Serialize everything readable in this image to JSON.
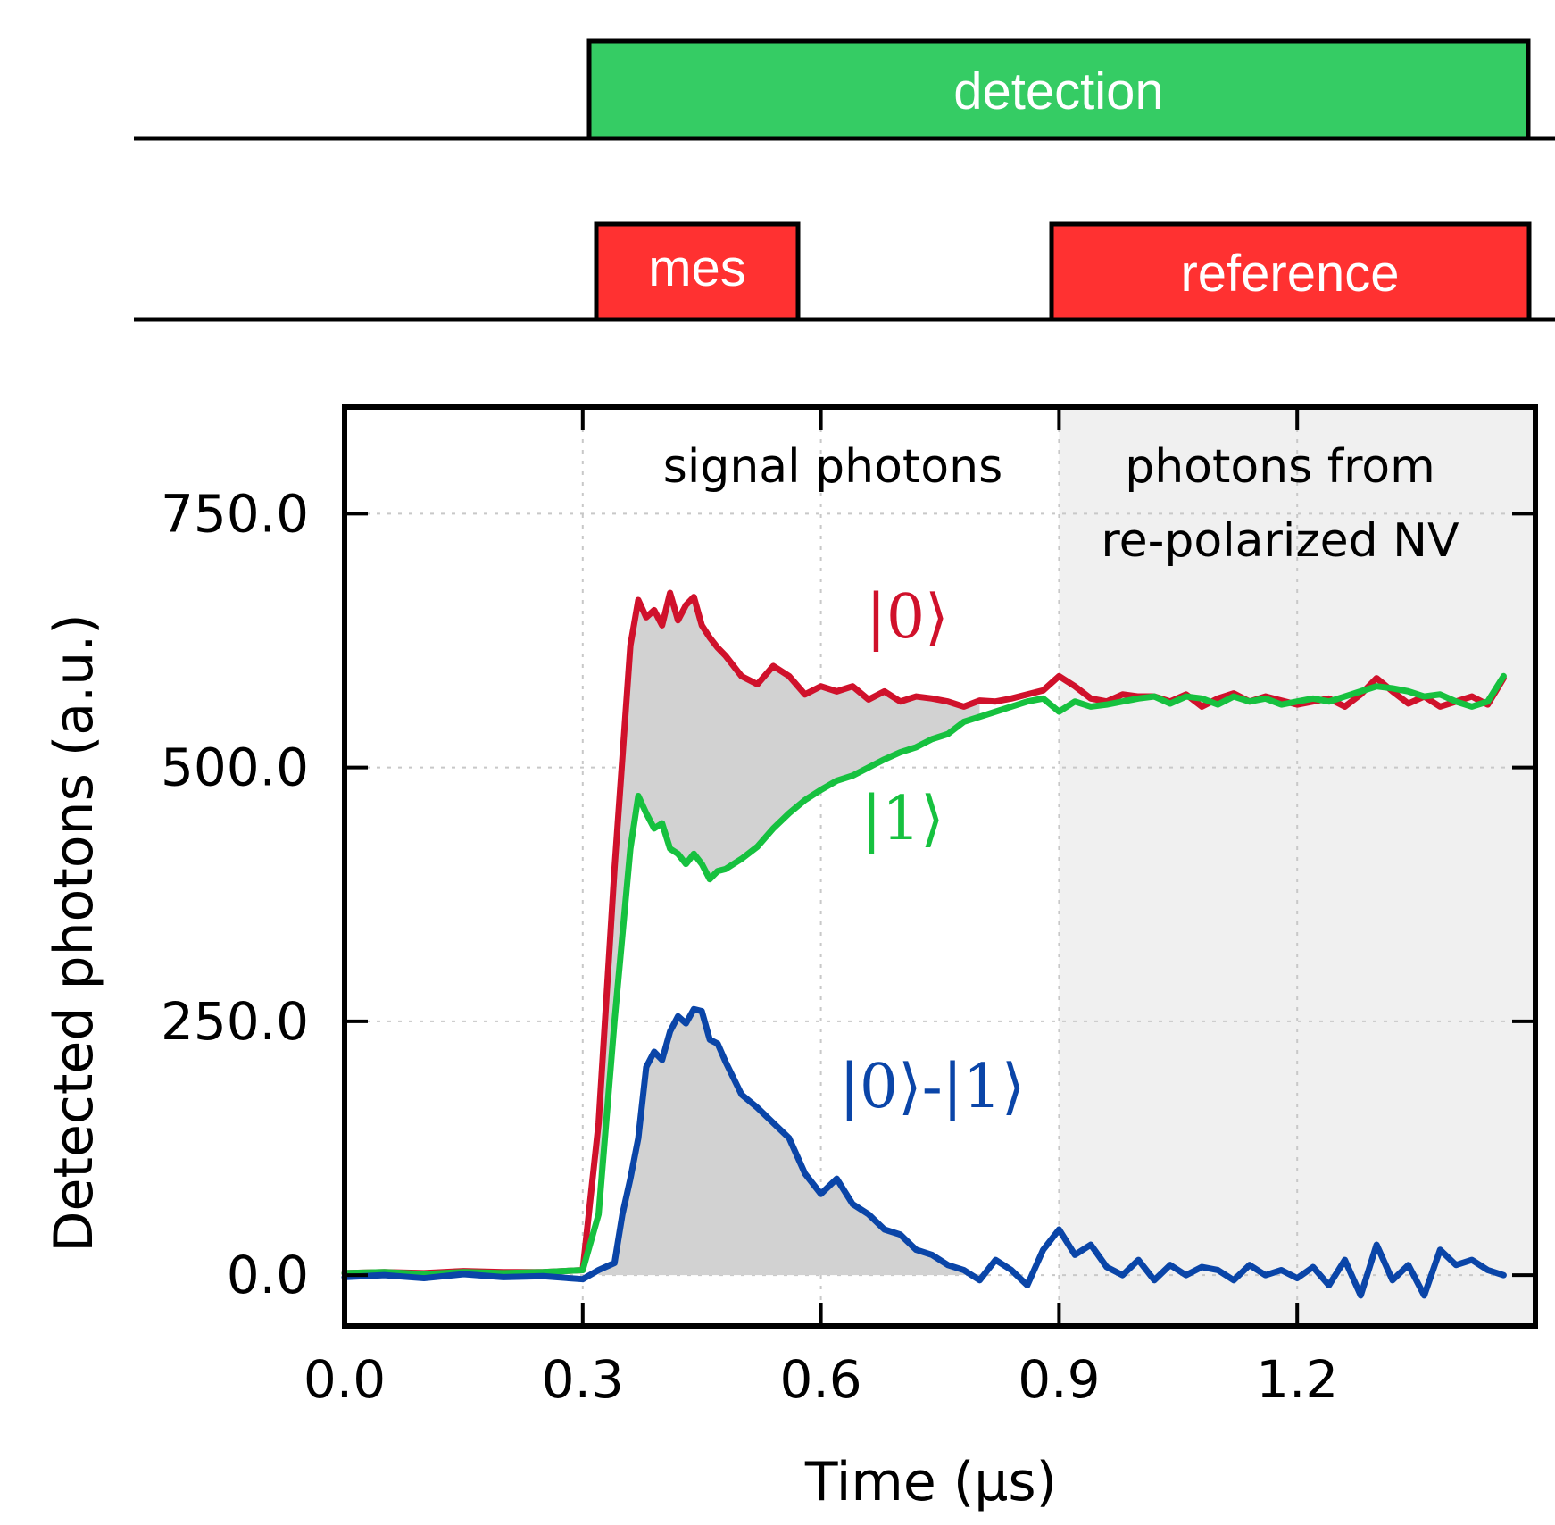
{
  "timing": {
    "detection": {
      "label": "detection",
      "start": 0.3,
      "end": 1.5,
      "color": "#35cc64"
    },
    "mes": {
      "label": "mes",
      "start": 0.31,
      "end": 0.58,
      "color": "#ff3131"
    },
    "reference": {
      "label": "reference",
      "start": 0.89,
      "end": 1.5,
      "color": "#ff3131"
    }
  },
  "regions": {
    "signal": "signal photons",
    "repolarized_line1": "photons from",
    "repolarized_line2": "re-polarized NV",
    "reference_shade_start": 0.9
  },
  "chart_data": {
    "type": "line",
    "xlabel": "Time (μs)",
    "ylabel": "Detected photons (a.u.)",
    "xlim": [
      0.0,
      1.5
    ],
    "ylim": [
      -50,
      855
    ],
    "xticks": [
      "0.0",
      "0.3",
      "0.6",
      "0.9",
      "1.2"
    ],
    "xtick_values": [
      0.0,
      0.3,
      0.6,
      0.9,
      1.2
    ],
    "yticks": [
      "0.0",
      "250.0",
      "500.0",
      "750.0"
    ],
    "ytick_values": [
      0,
      250,
      500,
      750
    ],
    "grid": true,
    "series": [
      {
        "name": "|0⟩",
        "color": "#d0112b",
        "x": [
          0.0,
          0.05,
          0.1,
          0.15,
          0.2,
          0.25,
          0.3,
          0.32,
          0.34,
          0.36,
          0.37,
          0.38,
          0.39,
          0.4,
          0.41,
          0.42,
          0.43,
          0.44,
          0.45,
          0.46,
          0.47,
          0.48,
          0.5,
          0.52,
          0.54,
          0.56,
          0.58,
          0.6,
          0.62,
          0.64,
          0.66,
          0.68,
          0.7,
          0.72,
          0.74,
          0.76,
          0.78,
          0.8,
          0.82,
          0.84,
          0.86,
          0.88,
          0.9,
          0.92,
          0.94,
          0.96,
          0.98,
          1.0,
          1.02,
          1.04,
          1.06,
          1.08,
          1.1,
          1.12,
          1.14,
          1.16,
          1.18,
          1.2,
          1.22,
          1.24,
          1.26,
          1.28,
          1.3,
          1.32,
          1.34,
          1.36,
          1.38,
          1.4,
          1.42,
          1.44,
          1.46
        ],
        "y": [
          2,
          3,
          2,
          4,
          3,
          3,
          5,
          150,
          400,
          620,
          665,
          648,
          655,
          640,
          672,
          645,
          660,
          668,
          640,
          628,
          618,
          610,
          590,
          582,
          600,
          590,
          572,
          580,
          575,
          580,
          567,
          575,
          565,
          570,
          568,
          565,
          560,
          566,
          565,
          568,
          572,
          576,
          590,
          580,
          568,
          565,
          572,
          570,
          570,
          565,
          572,
          560,
          568,
          573,
          565,
          570,
          566,
          562,
          565,
          568,
          560,
          572,
          588,
          575,
          563,
          570,
          560,
          565,
          570,
          562,
          588
        ]
      },
      {
        "name": "|1⟩",
        "color": "#16c13f",
        "x": [
          0.0,
          0.05,
          0.1,
          0.15,
          0.2,
          0.25,
          0.3,
          0.32,
          0.34,
          0.36,
          0.37,
          0.38,
          0.39,
          0.4,
          0.41,
          0.42,
          0.43,
          0.44,
          0.45,
          0.46,
          0.47,
          0.48,
          0.5,
          0.52,
          0.54,
          0.56,
          0.58,
          0.6,
          0.62,
          0.64,
          0.66,
          0.68,
          0.7,
          0.72,
          0.74,
          0.76,
          0.78,
          0.8,
          0.82,
          0.84,
          0.86,
          0.88,
          0.9,
          0.92,
          0.94,
          0.96,
          0.98,
          1.0,
          1.02,
          1.04,
          1.06,
          1.08,
          1.1,
          1.12,
          1.14,
          1.16,
          1.18,
          1.2,
          1.22,
          1.24,
          1.26,
          1.28,
          1.3,
          1.32,
          1.34,
          1.36,
          1.38,
          1.4,
          1.42,
          1.44,
          1.46
        ],
        "y": [
          2,
          3,
          1,
          3,
          2,
          3,
          5,
          60,
          250,
          420,
          472,
          455,
          440,
          445,
          420,
          415,
          405,
          415,
          405,
          390,
          398,
          400,
          410,
          422,
          440,
          455,
          468,
          478,
          487,
          492,
          500,
          508,
          515,
          520,
          528,
          533,
          545,
          550,
          555,
          560,
          565,
          568,
          555,
          565,
          560,
          562,
          565,
          568,
          570,
          563,
          570,
          568,
          562,
          570,
          565,
          568,
          562,
          565,
          568,
          565,
          570,
          575,
          580,
          578,
          575,
          570,
          572,
          565,
          560,
          565,
          590
        ]
      },
      {
        "name": "|0⟩-|1⟩",
        "color": "#0a45a8",
        "x": [
          0.0,
          0.05,
          0.1,
          0.15,
          0.2,
          0.25,
          0.3,
          0.32,
          0.34,
          0.35,
          0.36,
          0.37,
          0.38,
          0.39,
          0.4,
          0.41,
          0.42,
          0.43,
          0.44,
          0.45,
          0.46,
          0.47,
          0.48,
          0.5,
          0.52,
          0.54,
          0.56,
          0.58,
          0.6,
          0.62,
          0.64,
          0.66,
          0.68,
          0.7,
          0.72,
          0.74,
          0.76,
          0.78,
          0.8,
          0.82,
          0.84,
          0.86,
          0.88,
          0.9,
          0.92,
          0.94,
          0.96,
          0.98,
          1.0,
          1.02,
          1.04,
          1.06,
          1.08,
          1.1,
          1.12,
          1.14,
          1.16,
          1.18,
          1.2,
          1.22,
          1.24,
          1.26,
          1.28,
          1.3,
          1.32,
          1.34,
          1.36,
          1.38,
          1.4,
          1.42,
          1.44,
          1.46
        ],
        "y": [
          -2,
          0,
          -3,
          1,
          -2,
          -1,
          -4,
          5,
          12,
          60,
          95,
          135,
          205,
          220,
          212,
          240,
          255,
          248,
          262,
          260,
          232,
          228,
          210,
          178,
          165,
          150,
          135,
          100,
          80,
          95,
          70,
          60,
          45,
          40,
          25,
          20,
          10,
          5,
          -5,
          15,
          5,
          -10,
          25,
          45,
          20,
          30,
          8,
          0,
          15,
          -5,
          10,
          0,
          8,
          5,
          -5,
          10,
          0,
          5,
          -3,
          8,
          -10,
          15,
          -20,
          30,
          -5,
          10,
          -20,
          25,
          10,
          15,
          5,
          0
        ]
      }
    ],
    "annotations": [
      {
        "text": "|0⟩",
        "color": "#d0112b"
      },
      {
        "text": "|1⟩",
        "color": "#16c13f"
      },
      {
        "text": "|0⟩-|1⟩",
        "color": "#0a45a8"
      }
    ]
  }
}
